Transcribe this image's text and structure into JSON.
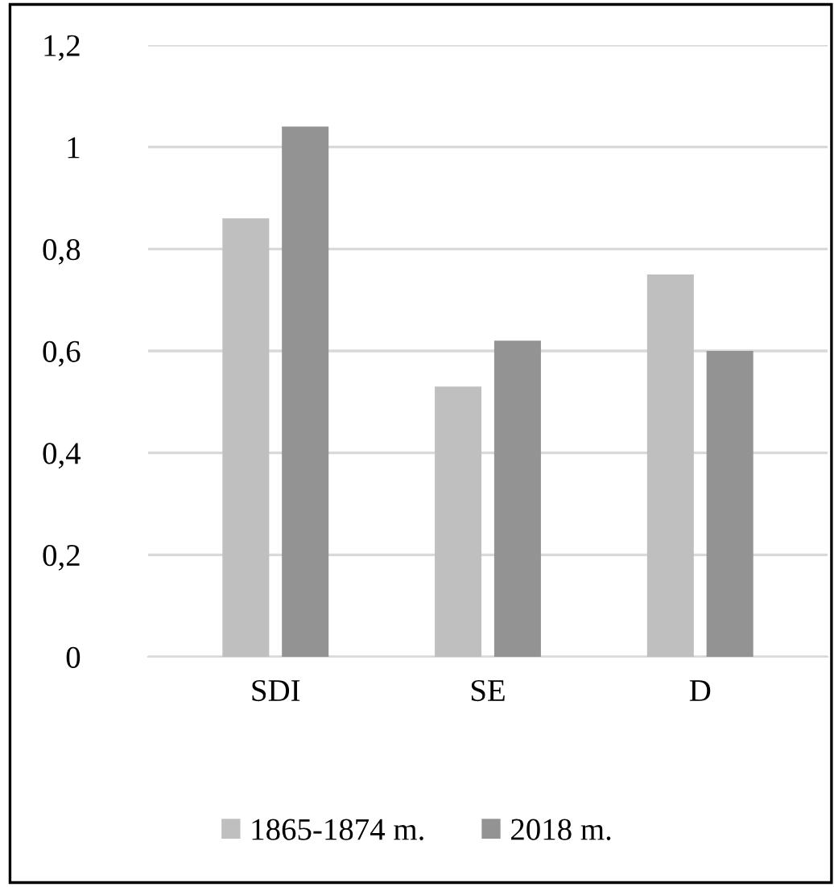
{
  "chart_data": {
    "type": "bar",
    "categories": [
      "SDI",
      "SE",
      "D"
    ],
    "series": [
      {
        "name": "1865-1874 m.",
        "color": "#bfbfbf",
        "values": [
          0.86,
          0.53,
          0.75
        ]
      },
      {
        "name": "2018 m.",
        "color": "#939393",
        "values": [
          1.04,
          0.62,
          0.6
        ]
      }
    ],
    "ylim": [
      0,
      1.2
    ],
    "yticks": [
      0,
      {
        "value": 0.2,
        "label": "0,2"
      },
      {
        "value": 0.4,
        "label": "0,4"
      },
      {
        "value": 0.6,
        "label": "0,6"
      },
      {
        "value": 0.8,
        "label": "0,8"
      },
      1,
      {
        "value": 1.2,
        "label": "1,2"
      }
    ],
    "grid": "y",
    "legend": "bottom"
  }
}
